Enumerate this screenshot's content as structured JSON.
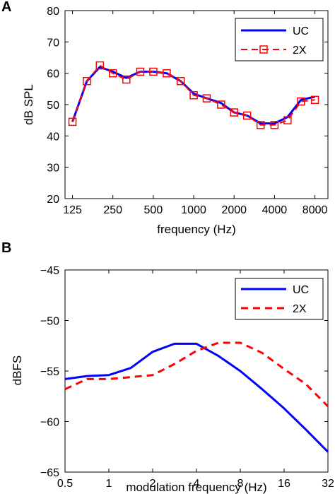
{
  "chart_data": [
    {
      "panel": "A",
      "type": "line",
      "xlabel": "frequency (Hz)",
      "ylabel": "dB SPL",
      "xscale": "log2",
      "xlim": [
        110,
        10000
      ],
      "ylim": [
        20,
        80
      ],
      "xticks": [
        125,
        250,
        500,
        1000,
        2000,
        4000,
        8000
      ],
      "xtick_labels": [
        "125",
        "250",
        "500",
        "1000",
        "2000",
        "4000",
        "8000"
      ],
      "yticks": [
        20,
        30,
        40,
        50,
        60,
        70,
        80
      ],
      "ytick_labels": [
        "20",
        "30",
        "40",
        "50",
        "60",
        "70",
        "80"
      ],
      "grid": false,
      "legend_position": "top-right",
      "series": [
        {
          "name": "UC",
          "color": "#0000ff",
          "style": "solid",
          "marker": "none",
          "x": [
            125,
            160,
            200,
            250,
            315,
            400,
            500,
            630,
            800,
            1000,
            1250,
            1600,
            2000,
            2500,
            3150,
            4000,
            5000,
            6300,
            8000
          ],
          "y": [
            44.5,
            57.5,
            62,
            60.5,
            58.5,
            60.5,
            60.5,
            60,
            57.5,
            53.5,
            52,
            50.5,
            47.5,
            46.5,
            44,
            44,
            46,
            51.5,
            52.5
          ]
        },
        {
          "name": "2X",
          "color": "#ff0000",
          "style": "dashed",
          "marker": "square",
          "x": [
            125,
            160,
            200,
            250,
            315,
            400,
            500,
            630,
            800,
            1000,
            1250,
            1600,
            2000,
            2500,
            3150,
            4000,
            5000,
            6300,
            8000
          ],
          "y": [
            44.5,
            57.5,
            62.5,
            60,
            58,
            60.5,
            60.5,
            60,
            57.5,
            53,
            52,
            50,
            47.5,
            46.5,
            43.5,
            43.5,
            45,
            51,
            51.5
          ]
        }
      ]
    },
    {
      "panel": "B",
      "type": "line",
      "xlabel": "modulation frequency (Hz)",
      "ylabel": "dBFS",
      "xscale": "log2",
      "xlim": [
        0.5,
        32
      ],
      "ylim": [
        -65,
        -45
      ],
      "xticks": [
        0.5,
        1,
        2,
        4,
        8,
        16,
        32
      ],
      "xtick_labels": [
        "0.5",
        "1",
        "2",
        "4",
        "8",
        "16",
        "32"
      ],
      "yticks": [
        -65,
        -60,
        -55,
        -50,
        -45
      ],
      "ytick_labels": [
        "−65",
        "−60",
        "−55",
        "−50",
        "−45"
      ],
      "grid": false,
      "legend_position": "top-right",
      "series": [
        {
          "name": "UC",
          "color": "#0000ff",
          "style": "solid",
          "x": [
            0.5,
            0.707,
            1,
            1.414,
            2,
            2.83,
            4,
            5.66,
            8,
            11.3,
            16,
            22.6,
            32
          ],
          "y": [
            -55.8,
            -55.5,
            -55.4,
            -54.7,
            -53.1,
            -52.3,
            -52.3,
            -53.5,
            -55,
            -56.8,
            -58.7,
            -60.8,
            -63
          ]
        },
        {
          "name": "2X",
          "color": "#ff0000",
          "style": "dashed",
          "x": [
            0.5,
            0.707,
            1,
            1.414,
            2,
            2.83,
            4,
            5.66,
            8,
            11.3,
            16,
            22.6,
            32
          ],
          "y": [
            -56.8,
            -55.8,
            -55.8,
            -55.6,
            -55.4,
            -54.3,
            -53,
            -52.2,
            -52.2,
            -53.2,
            -54.8,
            -56.3,
            -58.5
          ]
        }
      ]
    }
  ]
}
